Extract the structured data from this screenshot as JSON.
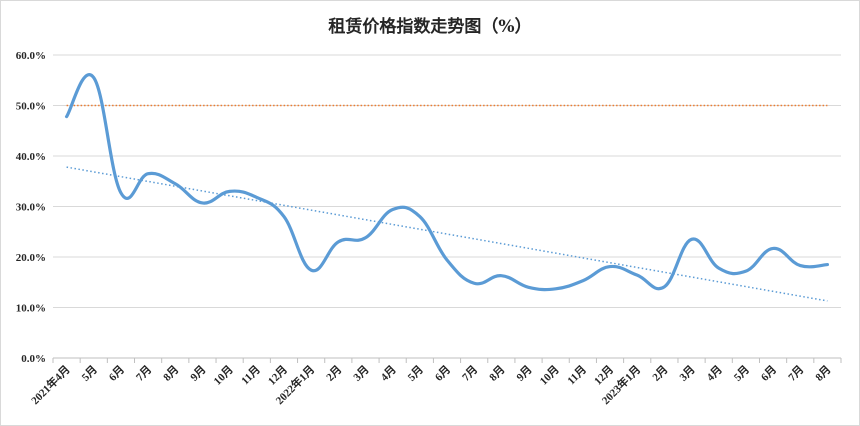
{
  "chart_data": {
    "type": "line",
    "title": "租赁价格指数走势图（%）",
    "xlabel": "",
    "ylabel": "",
    "ylim": [
      0,
      60
    ],
    "yticks": [
      "0.0%",
      "10.0%",
      "20.0%",
      "30.0%",
      "40.0%",
      "50.0%",
      "60.0%"
    ],
    "categories": [
      "2021年4月",
      "5月",
      "6月",
      "7月",
      "8月",
      "9月",
      "10月",
      "11月",
      "12月",
      "2022年1月",
      "2月",
      "3月",
      "4月",
      "5月",
      "6月",
      "7月",
      "8月",
      "9月",
      "10月",
      "11月",
      "12月",
      "2023年1月",
      "2月",
      "3月",
      "4月",
      "5月",
      "6月",
      "7月",
      "8月"
    ],
    "series": [
      {
        "color": "#5b9bd5",
        "style": "smooth-line",
        "values": [
          47.8,
          55.5,
          32.7,
          36.5,
          34.5,
          30.7,
          33.0,
          31.8,
          28.0,
          17.4,
          23.0,
          23.8,
          29.4,
          28.0,
          19.4,
          14.8,
          16.3,
          14.0,
          13.7,
          15.3,
          18.1,
          16.4,
          14.1,
          23.5,
          17.8,
          17.2,
          21.7,
          18.3,
          18.5
        ]
      }
    ],
    "reference_line": {
      "value": 50,
      "color": "#ed7d31",
      "style": "dotted"
    },
    "trendline": {
      "type": "linear",
      "start": 37.8,
      "end": 11.3,
      "color": "#5b9bd5",
      "style": "dotted"
    },
    "grid": true,
    "legend": "none"
  }
}
